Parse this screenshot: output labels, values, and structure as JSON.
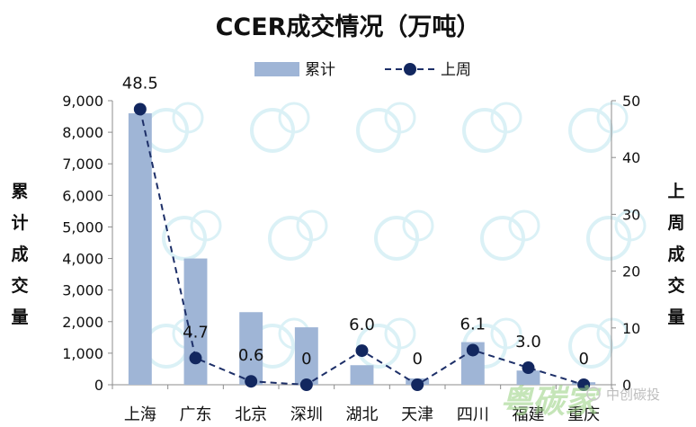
{
  "chart_data": {
    "type": "bar",
    "title": "CCER成交情况（万吨）",
    "categories": [
      "上海",
      "广东",
      "北京",
      "深圳",
      "湖北",
      "天津",
      "四川",
      "福建",
      "重庆"
    ],
    "series": [
      {
        "name": "累计",
        "type": "bar",
        "axis": "left",
        "values": [
          8600,
          4000,
          2300,
          1820,
          620,
          200,
          1350,
          450,
          80
        ]
      },
      {
        "name": "上周",
        "type": "line",
        "axis": "right",
        "values": [
          48.5,
          4.7,
          0.6,
          0,
          6.0,
          0,
          6.1,
          3.0,
          0
        ],
        "labels": [
          "48.5",
          "4.7",
          "0.6",
          "0",
          "6.0",
          "0",
          "6.1",
          "3.0",
          "0"
        ]
      }
    ],
    "ylabel_left": "累计成交量",
    "ylabel_right": "上周成交量",
    "ylim_left": [
      0,
      9000
    ],
    "yticks_left": [
      "0",
      "1,000",
      "2,000",
      "3,000",
      "4,000",
      "5,000",
      "6,000",
      "7,000",
      "8,000",
      "9,000"
    ],
    "ylim_right": [
      0,
      50
    ],
    "yticks_right": [
      "0",
      "10",
      "20",
      "30",
      "40",
      "50"
    ],
    "legend_position": "top-center",
    "grid": false,
    "colors": {
      "bar": "#9fb5d6",
      "line": "#1d2f68",
      "marker": "#12275f"
    }
  },
  "watermark": "中创碳投"
}
